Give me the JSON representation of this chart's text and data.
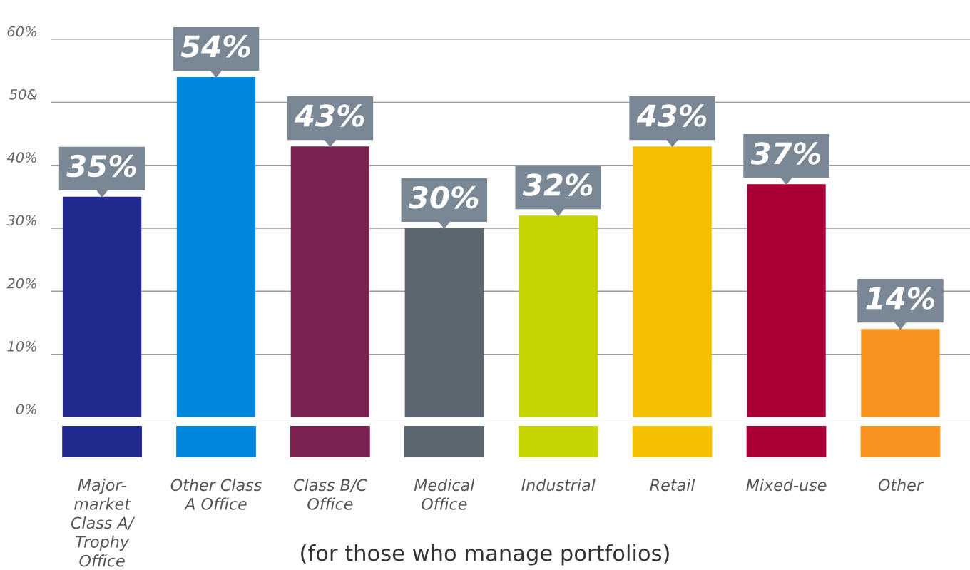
{
  "chart_data": {
    "type": "bar",
    "categories": [
      "Major-\nmarket\nClass A/\nTrophy\nOffice",
      "Other Class\nA Office",
      "Class B/C\nOffice",
      "Medical\nOffice",
      "Industrial",
      "Retail",
      "Mixed-use",
      "Other"
    ],
    "values": [
      35,
      54,
      43,
      30,
      32,
      43,
      37,
      14
    ],
    "colors": [
      "#232a8f",
      "#0087dc",
      "#7b2350",
      "#5b6670",
      "#c5d500",
      "#f5c000",
      "#a80034",
      "#f7931e"
    ],
    "value_labels": [
      "35%",
      "54%",
      "43%",
      "30%",
      "32%",
      "43%",
      "37%",
      "14%"
    ],
    "ylim": [
      0,
      60
    ],
    "yticks": [
      {
        "value": 0,
        "label": "0%"
      },
      {
        "value": 10,
        "label": "10%"
      },
      {
        "value": 20,
        "label": "20%"
      },
      {
        "value": 30,
        "label": "30%"
      },
      {
        "value": 40,
        "label": "40%"
      },
      {
        "value": 50,
        "label": "50&"
      },
      {
        "value": 60,
        "label": "60%"
      }
    ],
    "grid": "y",
    "annotations": [
      "(for those who manage portfolios)"
    ]
  }
}
